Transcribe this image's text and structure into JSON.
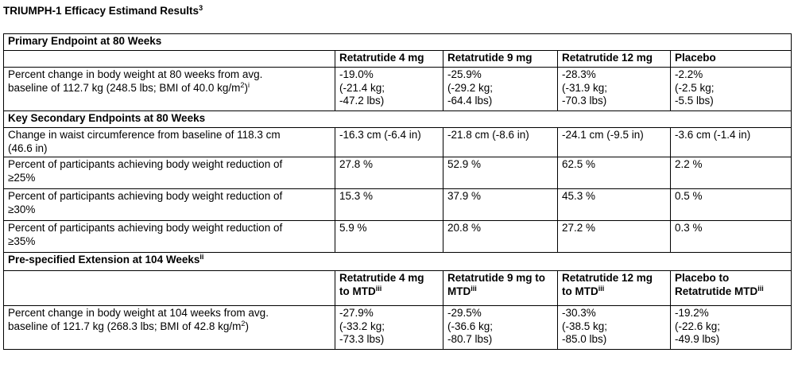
{
  "title": {
    "text": "TRIUMPH-1 Efficacy Estimand Results",
    "sup": "3"
  },
  "primary": {
    "section_title": "Primary Endpoint at 80 Weeks",
    "headers": [
      "Retatrutide 4 mg",
      "Retatrutide 9 mg",
      "Retatrutide 12 mg",
      "Placebo"
    ],
    "row": {
      "label_line1": "Percent change in body weight at 80 weeks from avg.",
      "label_line2_pre": "baseline of 112.7 kg (248.5 lbs; BMI of 40.0 kg/m",
      "label_line2_exp": "2",
      "label_line2_post": ")",
      "label_line2_note": "i",
      "cells": [
        [
          "-19.0%",
          "(-21.4 kg;",
          "-47.2 lbs)"
        ],
        [
          "-25.9%",
          "(-29.2 kg;",
          "-64.4 lbs)"
        ],
        [
          "-28.3%",
          "(-31.9 kg;",
          "-70.3 lbs)"
        ],
        [
          "-2.2%",
          "(-2.5 kg;",
          "-5.5 lbs)"
        ]
      ]
    }
  },
  "secondary": {
    "section_title": "Key Secondary Endpoints at 80 Weeks",
    "rows": [
      {
        "label": [
          "Change in waist circumference from baseline of 118.3 cm",
          "(46.6 in)"
        ],
        "values": [
          "-16.3 cm (-6.4 in)",
          "-21.8 cm (-8.6 in)",
          "-24.1 cm (-9.5 in)",
          "-3.6 cm (-1.4 in)"
        ]
      },
      {
        "label": [
          "Percent of participants achieving body weight reduction of",
          "≥25%"
        ],
        "values": [
          "27.8 %",
          "52.9 %",
          "62.5 %",
          "2.2 %"
        ]
      },
      {
        "label": [
          "Percent of participants achieving body weight reduction of",
          "≥30%"
        ],
        "values": [
          "15.3 %",
          "37.9 %",
          "45.3 %",
          "0.5 %"
        ]
      },
      {
        "label": [
          "Percent of participants achieving body weight reduction of",
          "≥35%"
        ],
        "values": [
          "5.9 %",
          "20.8 %",
          "27.2 %",
          "0.3 %"
        ]
      }
    ]
  },
  "extension": {
    "section_title": "Pre-specified Extension at 104 Weeks",
    "section_note": "ii",
    "headers": [
      {
        "line1": "Retatrutide 4 mg",
        "line2": "to MTD",
        "note": "iii"
      },
      {
        "line1": "Retatrutide 9 mg to",
        "line2": "MTD",
        "note": "iii"
      },
      {
        "line1": "Retatrutide 12 mg",
        "line2": "to MTD",
        "note": "iii"
      },
      {
        "line1": "Placebo to",
        "line2": "Retatrutide MTD",
        "note": "iii"
      }
    ],
    "row": {
      "label_line1": "Percent change in body weight at 104 weeks from avg.",
      "label_line2_pre": "baseline of 121.7 kg (268.3 lbs; BMI of 42.8 kg/m",
      "label_line2_exp": "2",
      "label_line2_post": ")",
      "cells": [
        [
          "-27.9%",
          "(-33.2 kg;",
          "-73.3 lbs)"
        ],
        [
          "-29.5%",
          "(-36.6 kg;",
          "-80.7 lbs)"
        ],
        [
          "-30.3%",
          "(-38.5 kg;",
          "-85.0 lbs)"
        ],
        [
          "-19.2%",
          "(-22.6 kg;",
          "-49.9 lbs)"
        ]
      ]
    }
  }
}
